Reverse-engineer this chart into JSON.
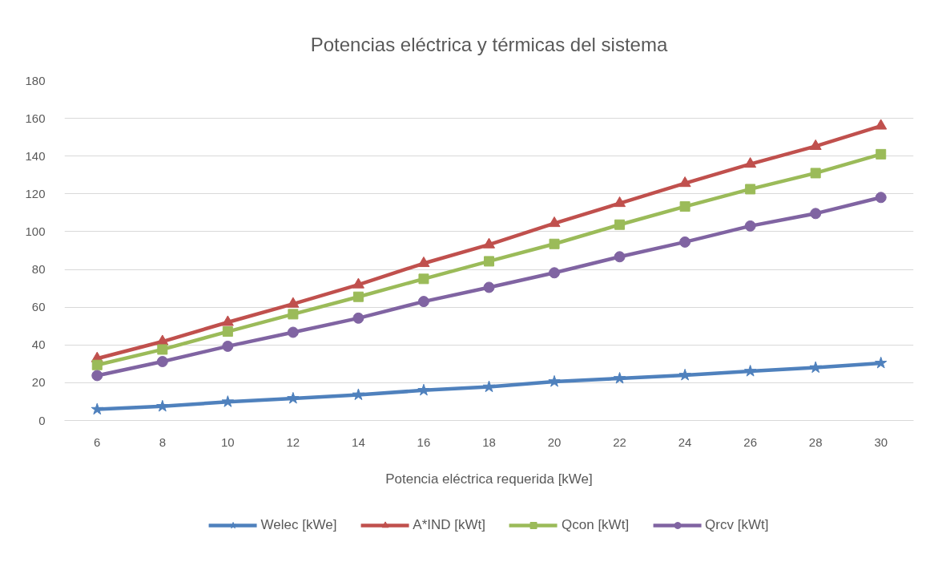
{
  "chart_data": {
    "type": "line",
    "title": "Potencias eléctrica y térmicas del sistema",
    "xlabel": "Potencia eléctrica requerida [kWe]",
    "categories": [
      "6",
      "8",
      "10",
      "12",
      "14",
      "16",
      "18",
      "20",
      "22",
      "24",
      "26",
      "28",
      "30"
    ],
    "ylim": [
      0,
      180
    ],
    "yticks": [
      0,
      20,
      40,
      60,
      80,
      100,
      120,
      140,
      160,
      180
    ],
    "grid": "y",
    "legend": "bottom",
    "line_style": "solid",
    "series": [
      {
        "name": "Welec [kWe]",
        "color": "#4f81bd",
        "marker": "star",
        "values": [
          5.9,
          7.5,
          9.9,
          11.7,
          13.6,
          16,
          17.8,
          20.6,
          22.3,
          24,
          26.1,
          28,
          30.4
        ]
      },
      {
        "name": "A*IND [kWt]",
        "color": "#c0504d",
        "marker": "triangle",
        "values": [
          32.8,
          41.8,
          52,
          61.7,
          71.9,
          83.2,
          93.1,
          104.4,
          115,
          125.6,
          135.8,
          145.2,
          156
        ]
      },
      {
        "name": "Qcon [kWt]",
        "color": "#9bbb59",
        "marker": "square",
        "values": [
          29.4,
          37.6,
          47.1,
          56.3,
          65.5,
          75,
          84.3,
          93.5,
          103.7,
          113.3,
          122.5,
          131,
          141
        ]
      },
      {
        "name": "Qrcv [kWt]",
        "color": "#8064a2",
        "marker": "circle",
        "values": [
          23.8,
          31.2,
          39.3,
          46.7,
          54.2,
          63,
          70.5,
          78.2,
          86.7,
          94.5,
          103,
          109.6,
          118.1
        ]
      }
    ]
  }
}
